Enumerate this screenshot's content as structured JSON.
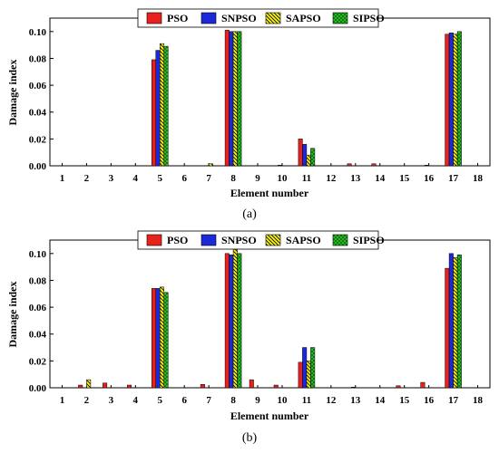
{
  "chart_data": [
    {
      "type": "bar",
      "caption": "(a)",
      "xlabel": "Element number",
      "ylabel": "Damage index",
      "ylim": [
        0,
        0.11
      ],
      "yticks": [
        "0.00",
        "0.02",
        "0.04",
        "0.06",
        "0.08",
        "0.10"
      ],
      "categories": [
        "1",
        "2",
        "3",
        "4",
        "5",
        "6",
        "7",
        "8",
        "9",
        "10",
        "11",
        "12",
        "13",
        "14",
        "15",
        "16",
        "17",
        "18"
      ],
      "legend_position": "top-center",
      "series": [
        {
          "name": "PSO",
          "color": "#e8211d",
          "pattern": "solid",
          "values": [
            0,
            0,
            0,
            0,
            0.079,
            0,
            0,
            0.101,
            0,
            0,
            0.02,
            0,
            0.0015,
            0.0015,
            0,
            0,
            0.098,
            0
          ]
        },
        {
          "name": "SNPSO",
          "color": "#1a2ad8",
          "pattern": "solid",
          "values": [
            0,
            0,
            0,
            0,
            0.086,
            0,
            0,
            0.1,
            0,
            0.0005,
            0.016,
            0,
            0,
            0,
            0,
            0.0005,
            0.099,
            0
          ]
        },
        {
          "name": "SAPSO",
          "color": "#f5ef1a",
          "pattern": "hatch",
          "values": [
            0,
            0,
            0,
            0,
            0.091,
            0,
            0.0015,
            0.1,
            0,
            0,
            0.008,
            0,
            0,
            0,
            0,
            0,
            0.098,
            0
          ]
        },
        {
          "name": "SIPSO",
          "color": "#28c424",
          "pattern": "cross",
          "values": [
            0,
            0,
            0,
            0,
            0.089,
            0,
            0,
            0.1,
            0,
            0,
            0.013,
            0,
            0,
            0,
            0,
            0,
            0.1,
            0
          ]
        }
      ]
    },
    {
      "type": "bar",
      "caption": "(b)",
      "xlabel": "Element number",
      "ylabel": "Damage index",
      "ylim": [
        0,
        0.11
      ],
      "yticks": [
        "0.00",
        "0.02",
        "0.04",
        "0.06",
        "0.08",
        "0.10"
      ],
      "categories": [
        "1",
        "2",
        "3",
        "4",
        "5",
        "6",
        "7",
        "8",
        "9",
        "10",
        "11",
        "12",
        "13",
        "14",
        "15",
        "16",
        "17",
        "18"
      ],
      "legend_position": "top-center",
      "series": [
        {
          "name": "PSO",
          "color": "#e8211d",
          "pattern": "solid",
          "values": [
            0,
            0.002,
            0.0035,
            0.002,
            0.074,
            0,
            0.0025,
            0.1,
            0.006,
            0.002,
            0.019,
            0,
            0,
            0,
            0.0015,
            0.004,
            0.089,
            0
          ]
        },
        {
          "name": "SNPSO",
          "color": "#1a2ad8",
          "pattern": "solid",
          "values": [
            0,
            0,
            0,
            0,
            0.074,
            0,
            0,
            0.099,
            0,
            0,
            0.03,
            0,
            0.0005,
            0,
            0,
            0,
            0.1,
            0
          ]
        },
        {
          "name": "SAPSO",
          "color": "#f5ef1a",
          "pattern": "hatch",
          "values": [
            0,
            0.006,
            0,
            0,
            0.075,
            0,
            0,
            0.103,
            0,
            0,
            0.02,
            0,
            0,
            0,
            0,
            0,
            0.097,
            0
          ]
        },
        {
          "name": "SIPSO",
          "color": "#28c424",
          "pattern": "cross",
          "values": [
            0,
            0,
            0,
            0,
            0.071,
            0,
            0,
            0.1,
            0,
            0,
            0.03,
            0,
            0,
            0,
            0,
            0,
            0.099,
            0
          ]
        }
      ]
    }
  ]
}
